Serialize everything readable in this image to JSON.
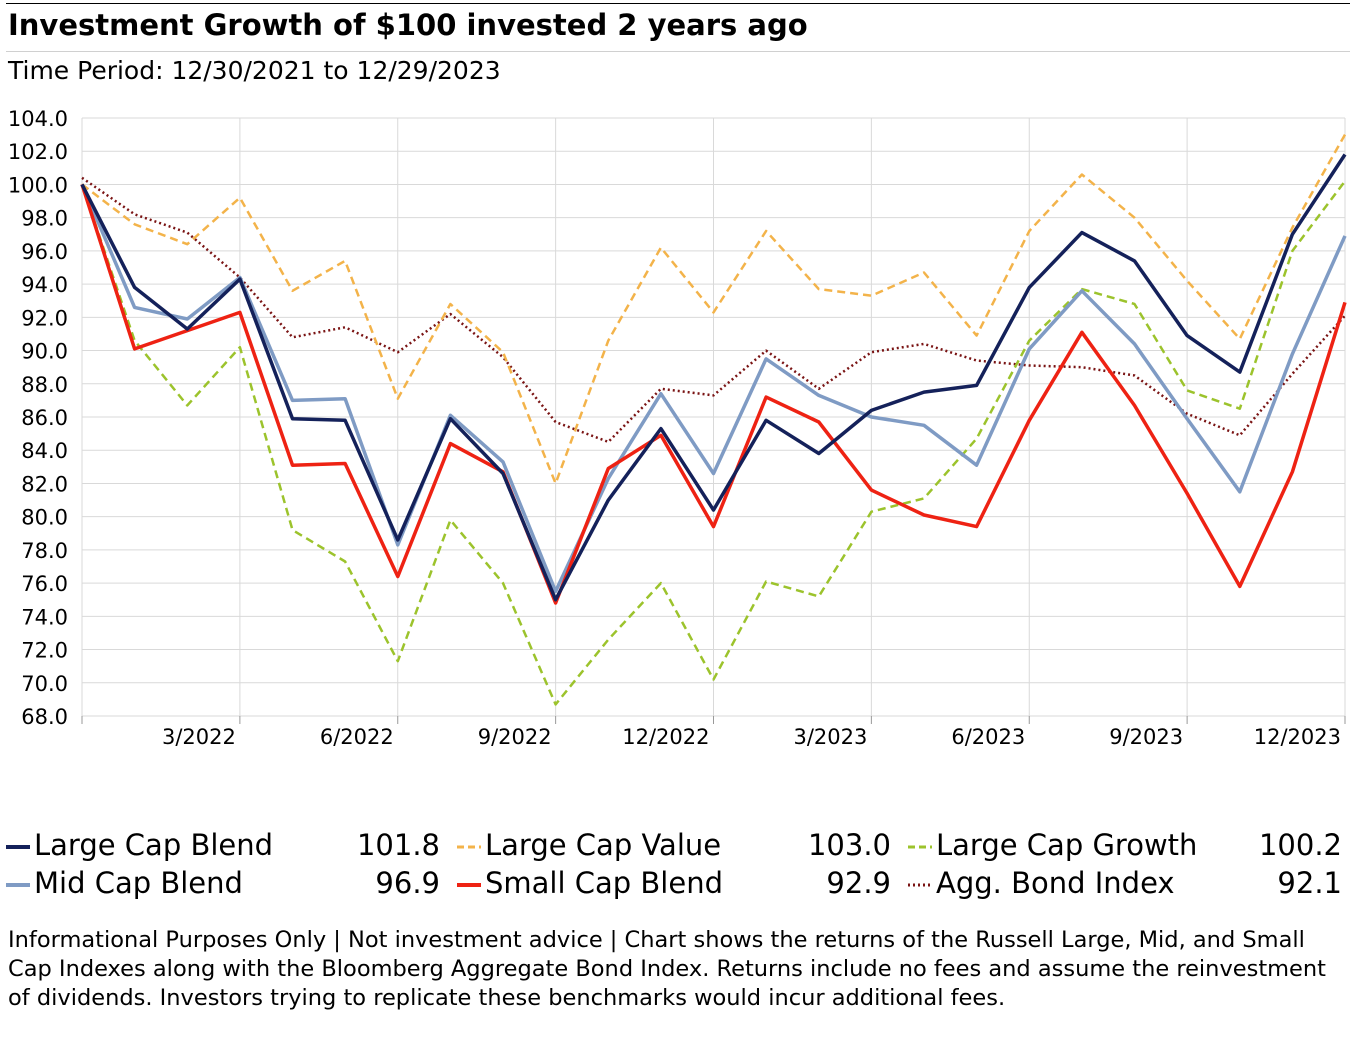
{
  "header": {
    "title": "Investment Growth of $100 invested 2 years ago",
    "subtitle": "Time Period: 12/30/2021 to 12/29/2023"
  },
  "chart_data": {
    "type": "line",
    "title": "Investment Growth of $100 invested 2 years ago",
    "subtitle": "Time Period: 12/30/2021 to 12/29/2023",
    "x": [
      "12/2021",
      "1/2022",
      "2/2022",
      "3/2022",
      "4/2022",
      "5/2022",
      "6/2022",
      "7/2022",
      "8/2022",
      "9/2022",
      "10/2022",
      "11/2022",
      "12/2022",
      "1/2023",
      "2/2023",
      "3/2023",
      "4/2023",
      "5/2023",
      "6/2023",
      "7/2023",
      "8/2023",
      "9/2023",
      "10/2023",
      "11/2023",
      "12/2023"
    ],
    "xticks": [
      "3/2022",
      "6/2022",
      "9/2022",
      "12/2022",
      "3/2023",
      "6/2023",
      "9/2023",
      "12/2023"
    ],
    "xtick_indices": [
      3,
      6,
      9,
      12,
      15,
      18,
      21,
      24
    ],
    "ylim": [
      68.0,
      104.0
    ],
    "yticks": [
      "68.0",
      "70.0",
      "72.0",
      "74.0",
      "76.0",
      "78.0",
      "80.0",
      "82.0",
      "84.0",
      "86.0",
      "88.0",
      "90.0",
      "92.0",
      "94.0",
      "96.0",
      "98.0",
      "100.0",
      "102.0",
      "104.0"
    ],
    "grid": true,
    "legend_position": "bottom",
    "series": [
      {
        "name": "Large Cap Blend",
        "final": "101.8",
        "color": "#14215a",
        "style": "solid",
        "width": 3.5,
        "values": [
          100.0,
          93.8,
          91.3,
          94.3,
          85.9,
          85.8,
          78.6,
          85.9,
          82.6,
          75.0,
          81.0,
          85.3,
          80.4,
          85.8,
          83.8,
          86.4,
          87.5,
          87.9,
          93.8,
          97.1,
          95.4,
          90.9,
          88.7,
          97.0,
          101.8
        ]
      },
      {
        "name": "Large Cap Value",
        "final": "103.0",
        "color": "#f3b34a",
        "style": "dash",
        "width": 2.5,
        "values": [
          100.0,
          97.6,
          96.4,
          99.2,
          93.6,
          95.4,
          87.1,
          92.8,
          89.9,
          82.0,
          90.6,
          96.2,
          92.3,
          97.2,
          93.7,
          93.3,
          94.7,
          90.9,
          97.2,
          100.6,
          98.0,
          94.2,
          90.7,
          97.4,
          103.0
        ]
      },
      {
        "name": "Large Cap Growth",
        "final": "100.2",
        "color": "#9cc32c",
        "style": "dash",
        "width": 2.5,
        "values": [
          100.0,
          90.6,
          86.7,
          90.2,
          79.2,
          77.3,
          71.3,
          79.8,
          76.0,
          68.7,
          72.6,
          76.0,
          70.2,
          76.1,
          75.2,
          80.3,
          81.1,
          84.7,
          90.6,
          93.7,
          92.8,
          87.6,
          86.5,
          96.0,
          100.2
        ]
      },
      {
        "name": "Mid Cap Blend",
        "final": "96.9",
        "color": "#7f9bc4",
        "style": "solid",
        "width": 3.5,
        "values": [
          100.0,
          92.6,
          91.9,
          94.4,
          87.0,
          87.1,
          78.3,
          86.1,
          83.3,
          75.5,
          82.3,
          87.4,
          82.6,
          89.5,
          87.3,
          86.0,
          85.5,
          83.1,
          90.1,
          93.6,
          90.4,
          85.9,
          81.5,
          89.8,
          96.9
        ]
      },
      {
        "name": "Small Cap Blend",
        "final": "92.9",
        "color": "#ee2213",
        "style": "solid",
        "width": 3.5,
        "values": [
          100.0,
          90.1,
          91.2,
          92.3,
          83.1,
          83.2,
          76.4,
          84.4,
          82.7,
          74.8,
          82.9,
          84.9,
          79.4,
          87.2,
          85.7,
          81.6,
          80.1,
          79.4,
          85.8,
          91.1,
          86.7,
          81.4,
          75.8,
          82.7,
          92.9
        ]
      },
      {
        "name": "Agg. Bond Index",
        "final": "92.1",
        "color": "#7a1414",
        "style": "dot",
        "width": 2.5,
        "values": [
          100.4,
          98.2,
          97.1,
          94.4,
          90.8,
          91.4,
          89.9,
          92.2,
          89.6,
          85.7,
          84.5,
          87.7,
          87.3,
          90.0,
          87.7,
          89.9,
          90.4,
          89.4,
          89.1,
          89.0,
          88.5,
          86.2,
          84.9,
          88.6,
          92.1
        ]
      }
    ]
  },
  "legend": {
    "items": [
      {
        "name": "Large Cap Blend",
        "value": "101.8"
      },
      {
        "name": "Large Cap Value",
        "value": "103.0"
      },
      {
        "name": "Large Cap Growth",
        "value": "100.2"
      },
      {
        "name": "Mid Cap Blend",
        "value": "96.9"
      },
      {
        "name": "Small Cap Blend",
        "value": "92.9"
      },
      {
        "name": "Agg. Bond Index",
        "value": "92.1"
      }
    ]
  },
  "footer": {
    "disclaimer": "Informational Purposes Only | Not investment advice | Chart shows the returns of the Russell Large, Mid, and Small Cap Indexes along with the Bloomberg Aggregate Bond Index. Returns include no fees and assume the reinvestment of dividends. Investors trying to replicate these benchmarks would incur additional fees."
  }
}
